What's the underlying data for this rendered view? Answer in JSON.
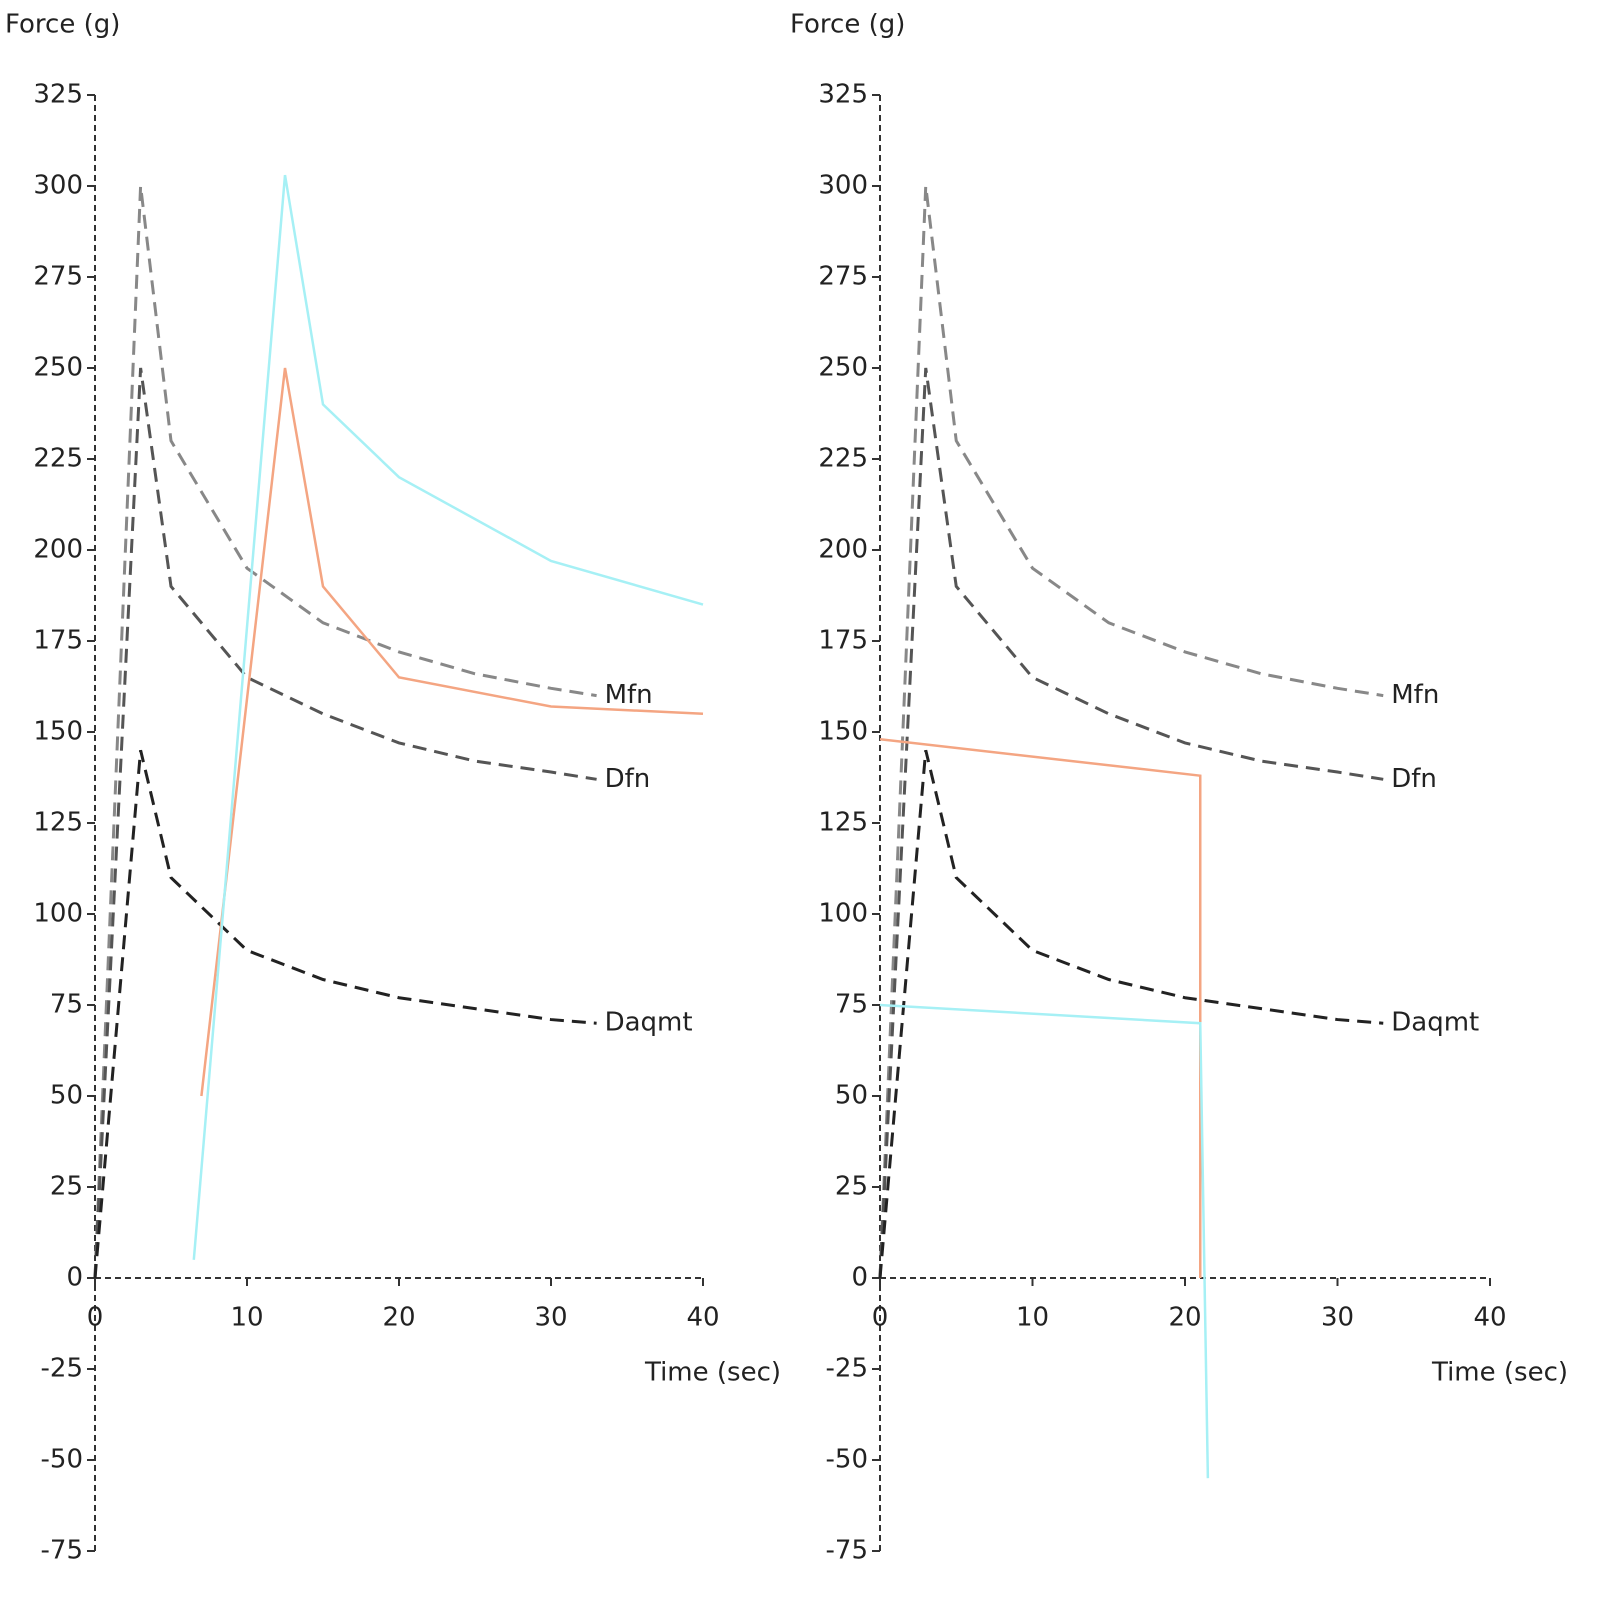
{
  "chart_data": [
    {
      "type": "line",
      "y_label": "Force (g)",
      "x_label": "Time (sec)",
      "xlim": [
        0,
        40
      ],
      "ylim": [
        -75,
        325
      ],
      "xticks": [
        0,
        10,
        20,
        30,
        40
      ],
      "yticks": [
        -75,
        -50,
        -25,
        0,
        25,
        50,
        75,
        100,
        125,
        150,
        175,
        200,
        225,
        250,
        275,
        300,
        325
      ],
      "series": [
        {
          "name": "Mfn",
          "color": "#888888",
          "style": "dashed",
          "x": [
            0,
            3,
            5,
            10,
            15,
            20,
            25,
            30,
            33
          ],
          "values": [
            0,
            300,
            230,
            195,
            180,
            172,
            166,
            162,
            160
          ]
        },
        {
          "name": "Dfn",
          "color": "#555555",
          "style": "dashed",
          "x": [
            0,
            3,
            5,
            10,
            15,
            20,
            25,
            30,
            33
          ],
          "values": [
            0,
            250,
            190,
            165,
            155,
            147,
            142,
            139,
            137
          ]
        },
        {
          "name": "Daqmt",
          "color": "#222222",
          "style": "dashed",
          "x": [
            0,
            3,
            5,
            10,
            15,
            20,
            25,
            30,
            33
          ],
          "values": [
            0,
            145,
            110,
            90,
            82,
            77,
            74,
            71,
            70
          ]
        },
        {
          "color": "#f4a582",
          "style": "solid",
          "x": [
            7,
            12.5,
            15,
            20,
            30,
            40
          ],
          "values": [
            50,
            250,
            190,
            165,
            157,
            155
          ]
        },
        {
          "color": "#a6f0f5",
          "style": "solid",
          "x": [
            6.5,
            12.5,
            15,
            20,
            30,
            40
          ],
          "values": [
            5,
            303,
            240,
            220,
            197,
            185
          ]
        }
      ]
    },
    {
      "type": "line",
      "y_label": "Force (g)",
      "x_label": "Time (sec)",
      "xlim": [
        0,
        40
      ],
      "ylim": [
        -75,
        325
      ],
      "xticks": [
        0,
        10,
        20,
        30,
        40
      ],
      "yticks": [
        -75,
        -50,
        -25,
        0,
        25,
        50,
        75,
        100,
        125,
        150,
        175,
        200,
        225,
        250,
        275,
        300,
        325
      ],
      "series": [
        {
          "name": "Mfn",
          "color": "#888888",
          "style": "dashed",
          "x": [
            0,
            3,
            5,
            10,
            15,
            20,
            25,
            30,
            33
          ],
          "values": [
            0,
            300,
            230,
            195,
            180,
            172,
            166,
            162,
            160
          ]
        },
        {
          "name": "Dfn",
          "color": "#555555",
          "style": "dashed",
          "x": [
            0,
            3,
            5,
            10,
            15,
            20,
            25,
            30,
            33
          ],
          "values": [
            0,
            250,
            190,
            165,
            155,
            147,
            142,
            139,
            137
          ]
        },
        {
          "name": "Daqmt",
          "color": "#222222",
          "style": "dashed",
          "x": [
            0,
            3,
            5,
            10,
            15,
            20,
            25,
            30,
            33
          ],
          "values": [
            0,
            145,
            110,
            90,
            82,
            77,
            74,
            71,
            70
          ]
        },
        {
          "color": "#f4a582",
          "style": "solid",
          "x": [
            0,
            21,
            21
          ],
          "values": [
            148,
            138,
            0
          ]
        },
        {
          "color": "#a6f0f5",
          "style": "solid",
          "x": [
            0,
            21,
            21.5
          ],
          "values": [
            75,
            70,
            -55
          ]
        }
      ]
    }
  ]
}
